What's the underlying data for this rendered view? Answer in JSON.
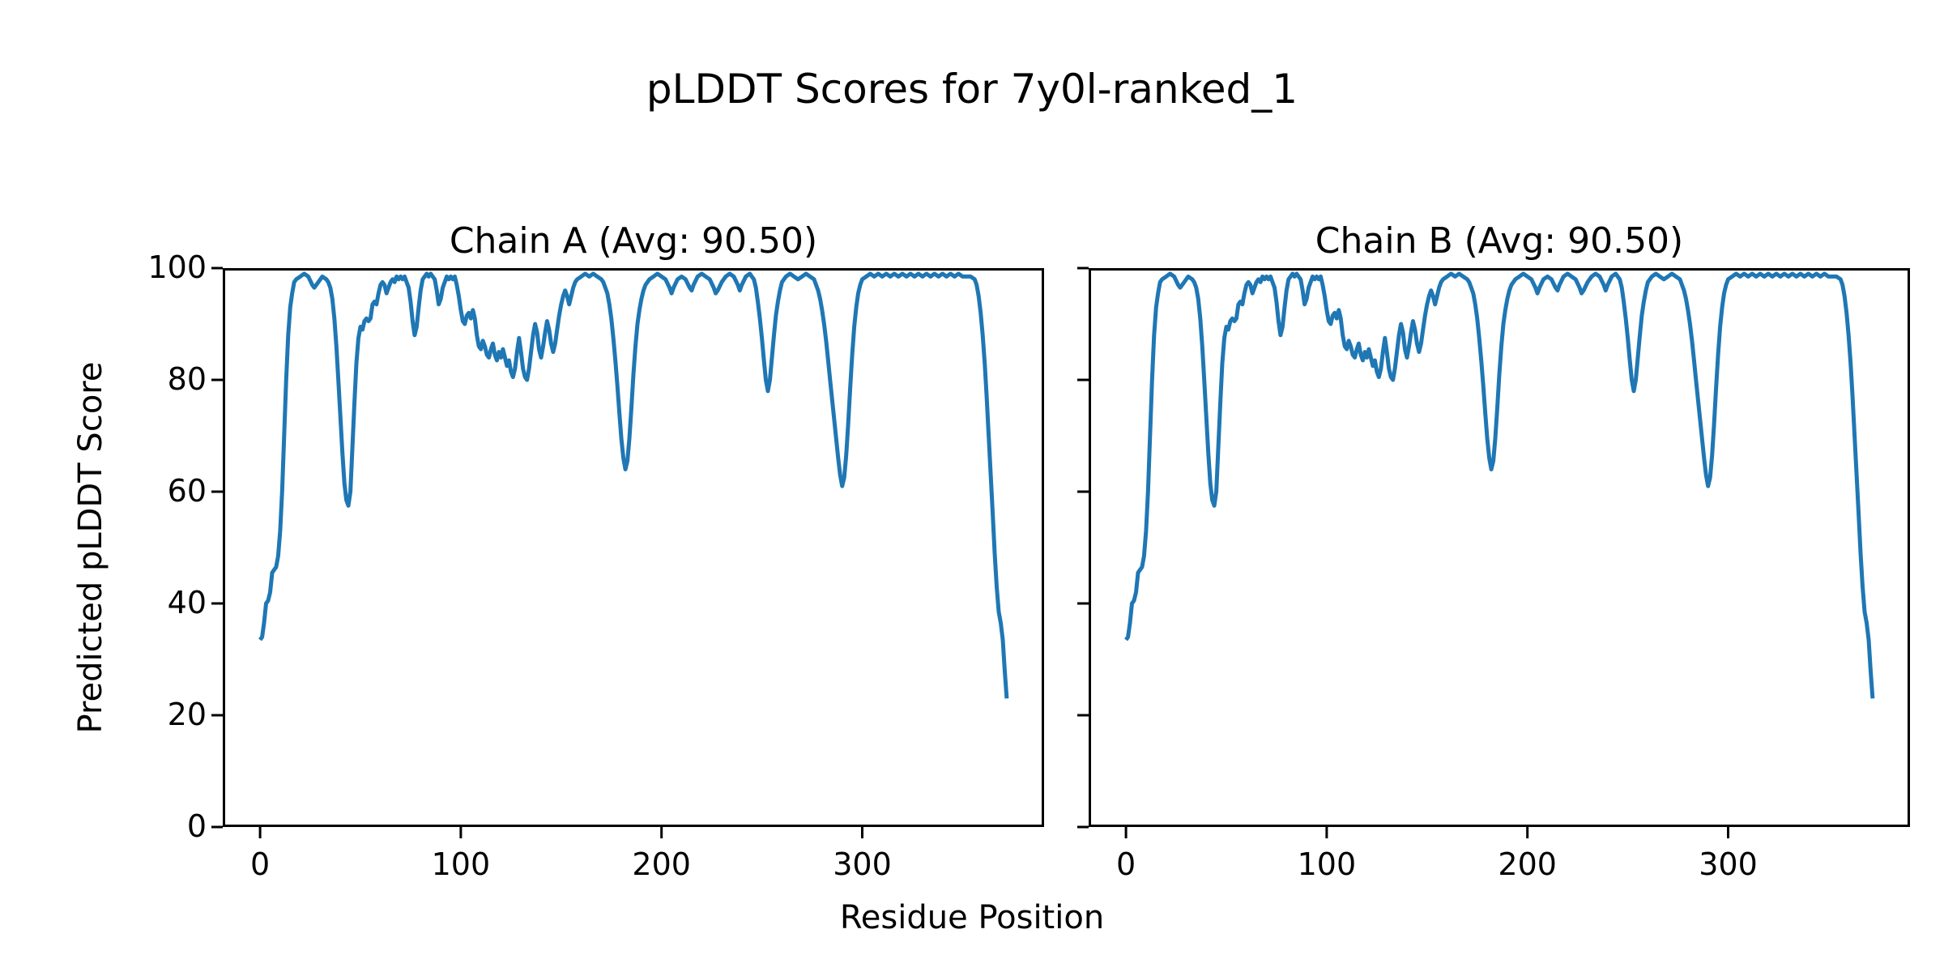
{
  "figure": {
    "suptitle": "pLDDT Scores for 7y0l-ranked_1",
    "xlabel": "Residue Position",
    "ylabel": "Predicted pLDDT Score",
    "background_color": "#ffffff",
    "text_color": "#000000",
    "spine_color": "#000000"
  },
  "chart_data": {
    "type": "line",
    "title": "pLDDT Scores for 7y0l-ranked_1",
    "xlabel": "Residue Position",
    "ylabel": "Predicted pLDDT Score",
    "line_color": "#1f77b4",
    "grid": false,
    "legend_position": "none",
    "xlim": [
      -18.6,
      390.6
    ],
    "ylim": [
      0,
      100
    ],
    "x_ticks": [
      0,
      100,
      200,
      300
    ],
    "y_ticks": [
      0,
      20,
      40,
      60,
      80,
      100
    ],
    "panels": [
      {
        "id": "chain-a",
        "title": "Chain A (Avg: 90.50)",
        "avg": 90.5,
        "y_tick_labels_visible": true
      },
      {
        "id": "chain-b",
        "title": "Chain B (Avg: 90.50)",
        "avg": 90.5,
        "y_tick_labels_visible": false
      }
    ],
    "series_note": "Both panels plot the identical pLDDT-vs-residue profile",
    "x_axis_name": "residue_position",
    "y_axis_name": "predicted_plddt_score",
    "points": [
      [
        0,
        33.5
      ],
      [
        1,
        34
      ],
      [
        2,
        36.5
      ],
      [
        3,
        40
      ],
      [
        4,
        40.5
      ],
      [
        5,
        42
      ],
      [
        6,
        45.5
      ],
      [
        7,
        46
      ],
      [
        8,
        46.5
      ],
      [
        9,
        48.5
      ],
      [
        10,
        53
      ],
      [
        11,
        60
      ],
      [
        12,
        70
      ],
      [
        13,
        80
      ],
      [
        14,
        88
      ],
      [
        15,
        93
      ],
      [
        16,
        95.5
      ],
      [
        17,
        97.5
      ],
      [
        18,
        98
      ],
      [
        20,
        98.5
      ],
      [
        22,
        99
      ],
      [
        24,
        98.5
      ],
      [
        26,
        97
      ],
      [
        27,
        96.5
      ],
      [
        29,
        97.5
      ],
      [
        31,
        98.5
      ],
      [
        33,
        98
      ],
      [
        34,
        97.5
      ],
      [
        35,
        96.5
      ],
      [
        36,
        94.5
      ],
      [
        37,
        91
      ],
      [
        38,
        86
      ],
      [
        39,
        80
      ],
      [
        40,
        73.5
      ],
      [
        41,
        67
      ],
      [
        42,
        61.5
      ],
      [
        43,
        58.5
      ],
      [
        44,
        57.5
      ],
      [
        45,
        60
      ],
      [
        46,
        68
      ],
      [
        47,
        76
      ],
      [
        48,
        83
      ],
      [
        49,
        87.5
      ],
      [
        50,
        89.5
      ],
      [
        51,
        89
      ],
      [
        52,
        90.5
      ],
      [
        53,
        91
      ],
      [
        54,
        90.5
      ],
      [
        55,
        91
      ],
      [
        56,
        93.5
      ],
      [
        57,
        94
      ],
      [
        58,
        93.5
      ],
      [
        59,
        95.5
      ],
      [
        60,
        97
      ],
      [
        61,
        97.5
      ],
      [
        62,
        97
      ],
      [
        63,
        95.5
      ],
      [
        64,
        96.5
      ],
      [
        65,
        97.5
      ],
      [
        66,
        98
      ],
      [
        67,
        97.5
      ],
      [
        68,
        98.5
      ],
      [
        69,
        98
      ],
      [
        70,
        98.5
      ],
      [
        71,
        98
      ],
      [
        72,
        98.5
      ],
      [
        73,
        97.5
      ],
      [
        74,
        96.5
      ],
      [
        75,
        94
      ],
      [
        76,
        90.5
      ],
      [
        77,
        88
      ],
      [
        78,
        89.5
      ],
      [
        79,
        93
      ],
      [
        80,
        96
      ],
      [
        81,
        98
      ],
      [
        82,
        98.5
      ],
      [
        83,
        99
      ],
      [
        84,
        98.5
      ],
      [
        85,
        99
      ],
      [
        86,
        98.5
      ],
      [
        87,
        98
      ],
      [
        88,
        96
      ],
      [
        89,
        93.5
      ],
      [
        90,
        94.5
      ],
      [
        91,
        96.5
      ],
      [
        92,
        97.5
      ],
      [
        93,
        98.5
      ],
      [
        94,
        98
      ],
      [
        95,
        98.5
      ],
      [
        96,
        98
      ],
      [
        97,
        98.5
      ],
      [
        98,
        97
      ],
      [
        99,
        95
      ],
      [
        100,
        92.5
      ],
      [
        101,
        90.5
      ],
      [
        102,
        90
      ],
      [
        103,
        91.5
      ],
      [
        104,
        92
      ],
      [
        105,
        91
      ],
      [
        106,
        92.5
      ],
      [
        107,
        91
      ],
      [
        108,
        88
      ],
      [
        109,
        86
      ],
      [
        110,
        85.5
      ],
      [
        111,
        87
      ],
      [
        112,
        86
      ],
      [
        113,
        84.5
      ],
      [
        114,
        84
      ],
      [
        115,
        85.5
      ],
      [
        116,
        86.5
      ],
      [
        117,
        84.5
      ],
      [
        118,
        83.5
      ],
      [
        119,
        85
      ],
      [
        120,
        84
      ],
      [
        121,
        85.5
      ],
      [
        122,
        84
      ],
      [
        123,
        82.5
      ],
      [
        124,
        83.5
      ],
      [
        125,
        81.5
      ],
      [
        126,
        80.5
      ],
      [
        127,
        82
      ],
      [
        128,
        85
      ],
      [
        129,
        87.5
      ],
      [
        130,
        85
      ],
      [
        131,
        82
      ],
      [
        132,
        80.5
      ],
      [
        133,
        80
      ],
      [
        134,
        82
      ],
      [
        135,
        85
      ],
      [
        136,
        88
      ],
      [
        137,
        90
      ],
      [
        138,
        88.5
      ],
      [
        139,
        85.5
      ],
      [
        140,
        84
      ],
      [
        141,
        86
      ],
      [
        142,
        88.5
      ],
      [
        143,
        90.5
      ],
      [
        144,
        89
      ],
      [
        145,
        86.5
      ],
      [
        146,
        85
      ],
      [
        147,
        86.5
      ],
      [
        148,
        89
      ],
      [
        149,
        91.5
      ],
      [
        150,
        93.5
      ],
      [
        151,
        95
      ],
      [
        152,
        96
      ],
      [
        153,
        95
      ],
      [
        154,
        93.5
      ],
      [
        155,
        95
      ],
      [
        156,
        96.5
      ],
      [
        157,
        97.5
      ],
      [
        158,
        98
      ],
      [
        160,
        98.5
      ],
      [
        162,
        99
      ],
      [
        164,
        98.5
      ],
      [
        166,
        99
      ],
      [
        168,
        98.5
      ],
      [
        170,
        98
      ],
      [
        171,
        97.5
      ],
      [
        172,
        96.5
      ],
      [
        173,
        95.5
      ],
      [
        174,
        93.5
      ],
      [
        175,
        91
      ],
      [
        176,
        87.5
      ],
      [
        177,
        83.5
      ],
      [
        178,
        79
      ],
      [
        179,
        74
      ],
      [
        180,
        69.5
      ],
      [
        181,
        66
      ],
      [
        182,
        64
      ],
      [
        183,
        65.5
      ],
      [
        184,
        69.5
      ],
      [
        185,
        75
      ],
      [
        186,
        81
      ],
      [
        187,
        86
      ],
      [
        188,
        90
      ],
      [
        189,
        92.5
      ],
      [
        190,
        94.5
      ],
      [
        191,
        96
      ],
      [
        192,
        97
      ],
      [
        194,
        98
      ],
      [
        196,
        98.5
      ],
      [
        198,
        99
      ],
      [
        200,
        98.5
      ],
      [
        202,
        98
      ],
      [
        204,
        96.5
      ],
      [
        205,
        95.5
      ],
      [
        206,
        96.5
      ],
      [
        208,
        98
      ],
      [
        210,
        98.5
      ],
      [
        212,
        98
      ],
      [
        214,
        96.5
      ],
      [
        215,
        96
      ],
      [
        216,
        97
      ],
      [
        218,
        98.5
      ],
      [
        220,
        99
      ],
      [
        222,
        98.5
      ],
      [
        224,
        98
      ],
      [
        226,
        96.5
      ],
      [
        227,
        95.5
      ],
      [
        228,
        96
      ],
      [
        230,
        97.5
      ],
      [
        232,
        98.5
      ],
      [
        234,
        99
      ],
      [
        236,
        98.5
      ],
      [
        238,
        97
      ],
      [
        239,
        96
      ],
      [
        240,
        97
      ],
      [
        242,
        98.5
      ],
      [
        244,
        99
      ],
      [
        245,
        98.5
      ],
      [
        246,
        98
      ],
      [
        247,
        96.5
      ],
      [
        248,
        94
      ],
      [
        249,
        91
      ],
      [
        250,
        87.5
      ],
      [
        251,
        83.5
      ],
      [
        252,
        80
      ],
      [
        253,
        78
      ],
      [
        254,
        80
      ],
      [
        255,
        84
      ],
      [
        256,
        88
      ],
      [
        257,
        91.5
      ],
      [
        258,
        94
      ],
      [
        259,
        96
      ],
      [
        260,
        97.5
      ],
      [
        262,
        98.5
      ],
      [
        264,
        99
      ],
      [
        266,
        98.5
      ],
      [
        268,
        98
      ],
      [
        270,
        98.5
      ],
      [
        272,
        99
      ],
      [
        274,
        98.5
      ],
      [
        276,
        98
      ],
      [
        277,
        97
      ],
      [
        278,
        96
      ],
      [
        279,
        94.5
      ],
      [
        280,
        92.5
      ],
      [
        281,
        90
      ],
      [
        282,
        87
      ],
      [
        283,
        83.5
      ],
      [
        284,
        80
      ],
      [
        285,
        76.5
      ],
      [
        286,
        73
      ],
      [
        287,
        69.5
      ],
      [
        288,
        66
      ],
      [
        289,
        63
      ],
      [
        290,
        61
      ],
      [
        291,
        62.5
      ],
      [
        292,
        66.5
      ],
      [
        293,
        72
      ],
      [
        294,
        78.5
      ],
      [
        295,
        84.5
      ],
      [
        296,
        89.5
      ],
      [
        297,
        93
      ],
      [
        298,
        95.5
      ],
      [
        299,
        97
      ],
      [
        300,
        98
      ],
      [
        302,
        98.5
      ],
      [
        304,
        99
      ],
      [
        306,
        98.5
      ],
      [
        308,
        99
      ],
      [
        310,
        98.5
      ],
      [
        312,
        99
      ],
      [
        314,
        98.5
      ],
      [
        316,
        99
      ],
      [
        318,
        98.5
      ],
      [
        320,
        99
      ],
      [
        322,
        98.5
      ],
      [
        324,
        99
      ],
      [
        326,
        98.5
      ],
      [
        328,
        99
      ],
      [
        330,
        98.5
      ],
      [
        332,
        99
      ],
      [
        334,
        98.5
      ],
      [
        336,
        99
      ],
      [
        338,
        98.5
      ],
      [
        340,
        99
      ],
      [
        342,
        98.5
      ],
      [
        344,
        99
      ],
      [
        346,
        98.5
      ],
      [
        348,
        99
      ],
      [
        350,
        98.5
      ],
      [
        352,
        98.5
      ],
      [
        354,
        98.5
      ],
      [
        356,
        98
      ],
      [
        357,
        97
      ],
      [
        358,
        95
      ],
      [
        359,
        92
      ],
      [
        360,
        88
      ],
      [
        361,
        83
      ],
      [
        362,
        77
      ],
      [
        363,
        70
      ],
      [
        364,
        63
      ],
      [
        365,
        56
      ],
      [
        366,
        49
      ],
      [
        367,
        43
      ],
      [
        368,
        38.5
      ],
      [
        369,
        36.5
      ],
      [
        370,
        33.5
      ],
      [
        371,
        28
      ],
      [
        372,
        23
      ]
    ]
  }
}
